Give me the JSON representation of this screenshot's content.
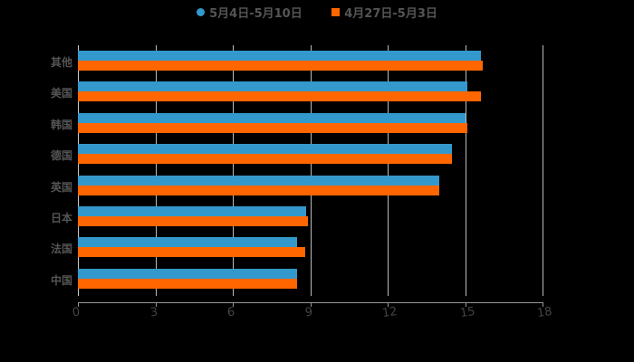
{
  "chart_data": {
    "type": "bar",
    "orientation": "horizontal",
    "title": "",
    "xlabel": "",
    "ylabel": "",
    "xlim": [
      0,
      18
    ],
    "x_ticks": [
      0,
      3,
      6,
      9,
      12,
      15,
      18
    ],
    "grid": true,
    "legend_position": "top",
    "categories": [
      "其他",
      "美国",
      "韩国",
      "德国",
      "英国",
      "日本",
      "法国",
      "中国"
    ],
    "series": [
      {
        "name": "5月4日-5月10日",
        "color": "#3399cc",
        "values": [
          15.6,
          15.1,
          15.0,
          14.5,
          14.0,
          8.85,
          8.5,
          8.5
        ]
      },
      {
        "name": "4月27日-5月3日",
        "color": "#ff6600",
        "values": [
          15.7,
          15.6,
          15.1,
          14.5,
          14.0,
          8.9,
          8.8,
          8.5
        ]
      }
    ]
  },
  "legend": {
    "items": [
      {
        "label": "5月4日-5月10日",
        "color": "#3399cc",
        "shape": "circle"
      },
      {
        "label": "4月27日-5月3日",
        "color": "#ff6600",
        "shape": "square"
      }
    ]
  },
  "axis": {
    "ticks": [
      "0",
      "3",
      "6",
      "9",
      "12",
      "15",
      "18"
    ]
  }
}
